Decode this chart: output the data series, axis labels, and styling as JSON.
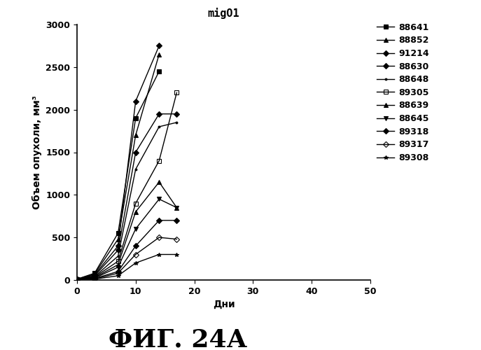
{
  "title": "migO1",
  "xlabel": "Дни",
  "ylabel": "Объем опухоли, мм³",
  "figure_label": "ФИГ. 24А",
  "xlim": [
    0,
    50
  ],
  "ylim": [
    0,
    3000
  ],
  "yticks": [
    0,
    500,
    1000,
    1500,
    2000,
    2500,
    3000
  ],
  "xticks": [
    0,
    10,
    20,
    30,
    40,
    50
  ],
  "series": [
    {
      "label": "88641",
      "marker": "s",
      "mfc": "black",
      "x": [
        0,
        3,
        7,
        10,
        14
      ],
      "y": [
        10,
        80,
        550,
        1900,
        2450
      ]
    },
    {
      "label": "88852",
      "marker": "^",
      "mfc": "black",
      "x": [
        0,
        3,
        7,
        10,
        14
      ],
      "y": [
        10,
        70,
        480,
        1700,
        2650
      ]
    },
    {
      "label": "91214",
      "marker": "D",
      "mfc": "black",
      "x": [
        0,
        3,
        7,
        10,
        14
      ],
      "y": [
        10,
        60,
        400,
        2100,
        2750
      ]
    },
    {
      "label": "88630",
      "marker": "D",
      "mfc": "black",
      "x": [
        0,
        3,
        7,
        10,
        14,
        17
      ],
      "y": [
        10,
        50,
        350,
        1500,
        1950,
        1950
      ]
    },
    {
      "label": "88648",
      "marker": ".",
      "mfc": "black",
      "x": [
        0,
        3,
        7,
        10,
        14,
        17
      ],
      "y": [
        10,
        40,
        280,
        1300,
        1800,
        1850
      ]
    },
    {
      "label": "89305",
      "marker": "s",
      "mfc": "none",
      "x": [
        0,
        3,
        7,
        10,
        14,
        17
      ],
      "y": [
        10,
        35,
        220,
        900,
        1400,
        2200
      ]
    },
    {
      "label": "88639",
      "marker": "^",
      "mfc": "black",
      "x": [
        0,
        3,
        7,
        10,
        14,
        17
      ],
      "y": [
        10,
        28,
        180,
        800,
        1150,
        850
      ]
    },
    {
      "label": "88645",
      "marker": "v",
      "mfc": "black",
      "x": [
        0,
        3,
        7,
        10,
        14,
        17
      ],
      "y": [
        10,
        22,
        150,
        600,
        950,
        850
      ]
    },
    {
      "label": "89318",
      "marker": "D",
      "mfc": "black",
      "x": [
        0,
        3,
        7,
        10,
        14,
        17
      ],
      "y": [
        10,
        18,
        100,
        400,
        700,
        700
      ]
    },
    {
      "label": "89317",
      "marker": "D",
      "mfc": "none",
      "x": [
        0,
        3,
        7,
        10,
        14,
        17
      ],
      "y": [
        10,
        12,
        80,
        300,
        500,
        480
      ]
    },
    {
      "label": "89308",
      "marker": "*",
      "mfc": "black",
      "x": [
        0,
        3,
        7,
        10,
        14,
        17
      ],
      "y": [
        10,
        10,
        50,
        200,
        300,
        300
      ]
    }
  ],
  "line_color": "#000000",
  "background_color": "#ffffff",
  "title_fontsize": 11,
  "label_fontsize": 10,
  "tick_fontsize": 9,
  "legend_fontsize": 9,
  "figure_label_fontsize": 26
}
